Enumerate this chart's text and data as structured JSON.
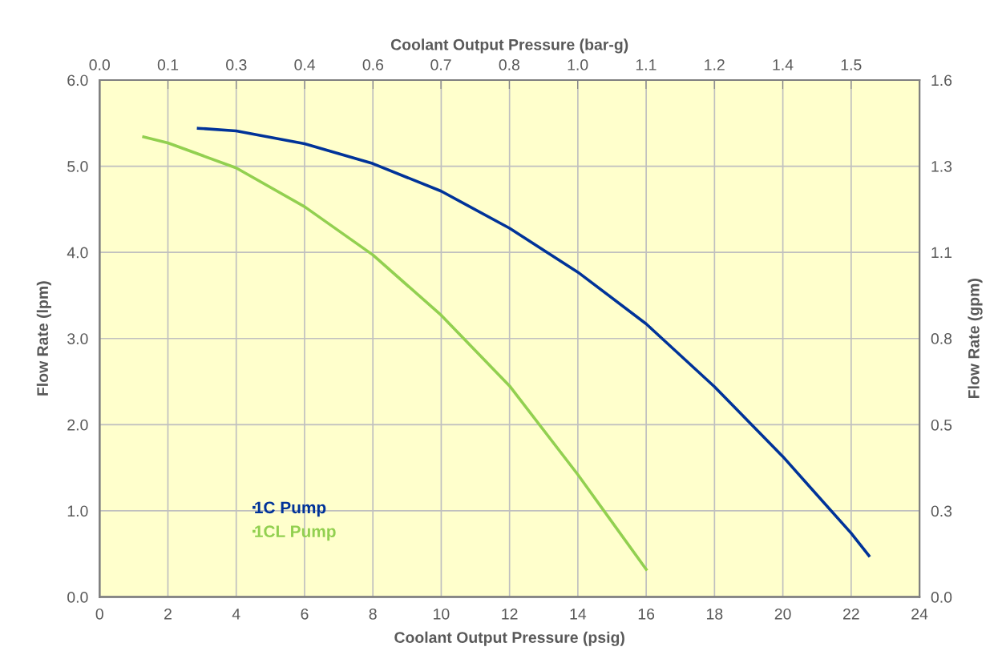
{
  "chart_data": {
    "type": "line",
    "xlabel": "Coolant Output Pressure (psig)",
    "ylabel": "Flow Rate (lpm)",
    "x2label": "Coolant Output Pressure (bar-g)",
    "y2label": "Flow Rate (gpm)",
    "series": [
      {
        "name": "1C Pump",
        "color": "#003399",
        "x": [
          2.89,
          4,
          6,
          8,
          10,
          12,
          14,
          16,
          18,
          20,
          22,
          22.52
        ],
        "values": [
          5.44,
          5.41,
          5.26,
          5.03,
          4.71,
          4.28,
          3.77,
          3.17,
          2.44,
          1.63,
          0.74,
          0.48
        ]
      },
      {
        "name": "1CL Pump",
        "color": "#92d050",
        "x": [
          1.29,
          2,
          4,
          6,
          8,
          10,
          12,
          14,
          16
        ],
        "values": [
          5.34,
          5.27,
          4.98,
          4.53,
          3.97,
          3.27,
          2.45,
          1.42,
          0.32
        ]
      }
    ],
    "xlim": [
      0,
      24
    ],
    "xticks": [
      0,
      2,
      4,
      6,
      8,
      10,
      12,
      14,
      16,
      18,
      20,
      22,
      24
    ],
    "ylim": [
      0,
      6
    ],
    "yticks": [
      {
        "value": 0,
        "label": "0.0"
      },
      {
        "value": 1,
        "label": "1.0"
      },
      {
        "value": 2,
        "label": "2.0"
      },
      {
        "value": 3,
        "label": "3.0"
      },
      {
        "value": 4,
        "label": "4.0"
      },
      {
        "value": 5,
        "label": "5.0"
      },
      {
        "value": 6,
        "label": "6.0"
      }
    ],
    "x2lim": [
      0,
      1.655
    ],
    "x2ticks": [
      {
        "value": 0,
        "label": "0.0"
      },
      {
        "value": 0.138,
        "label": "0.1"
      },
      {
        "value": 0.276,
        "label": "0.3"
      },
      {
        "value": 0.414,
        "label": "0.4"
      },
      {
        "value": 0.552,
        "label": "0.6"
      },
      {
        "value": 0.689,
        "label": "0.7"
      },
      {
        "value": 0.827,
        "label": "0.8"
      },
      {
        "value": 0.965,
        "label": "1.0"
      },
      {
        "value": 1.103,
        "label": "1.1"
      },
      {
        "value": 1.241,
        "label": "1.2"
      },
      {
        "value": 1.379,
        "label": "1.4"
      },
      {
        "value": 1.517,
        "label": "1.5"
      }
    ],
    "y2lim": [
      0,
      1.585
    ],
    "y2ticks": [
      {
        "value": 0,
        "label": "0.0"
      },
      {
        "value": 0.264,
        "label": "0.3"
      },
      {
        "value": 0.528,
        "label": "0.5"
      },
      {
        "value": 0.793,
        "label": "0.8"
      },
      {
        "value": 1.057,
        "label": "1.1"
      },
      {
        "value": 1.321,
        "label": "1.3"
      },
      {
        "value": 1.585,
        "label": "1.6"
      }
    ],
    "grid": true,
    "legend": "bottom left",
    "marker": "none",
    "line_style": "solid"
  }
}
